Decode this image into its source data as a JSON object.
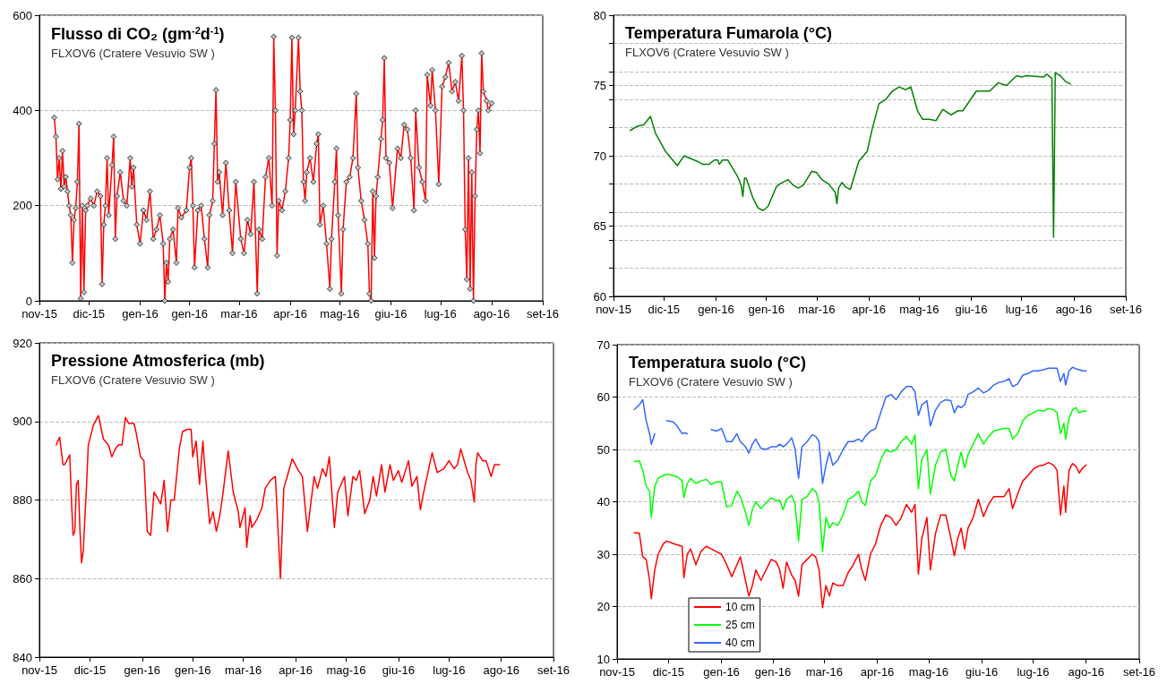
{
  "chart_data": [
    {
      "type": "line",
      "title": "Flusso di CO₂ (gm$^{-2}$d$^{-1}$)",
      "subtitle": "FLXOV6 (Cratere Vesuvio SW )",
      "marker": "diamond",
      "grid": "y",
      "xlim": [
        "2015-11-01",
        "2016-09-01"
      ],
      "xticks": [
        {
          "value": "2015-11-01",
          "label": "nov-15"
        },
        {
          "value": "2015-12-01",
          "label": "dic-15"
        },
        {
          "value": "2016-01-01",
          "label": "gen-16"
        },
        {
          "value": "2016-01-31",
          "label": "gen-16"
        },
        {
          "value": "2016-03-01",
          "label": "mar-16"
        },
        {
          "value": "2016-04-01",
          "label": "apr-16"
        },
        {
          "value": "2016-05-01",
          "label": "mag-16"
        },
        {
          "value": "2016-06-01",
          "label": "giu-16"
        },
        {
          "value": "2016-07-01",
          "label": "lug-16"
        },
        {
          "value": "2016-08-01",
          "label": "ago-16"
        },
        {
          "value": "2016-09-01",
          "label": "set-16"
        }
      ],
      "ylim": [
        0,
        600
      ],
      "yticks": [
        0,
        200,
        400,
        600
      ],
      "x": [
        "2015-11-10",
        "2015-11-11",
        "2015-11-12",
        "2015-11-13",
        "2015-11-14",
        "2015-11-15",
        "2015-11-16",
        "2015-11-17",
        "2015-11-18",
        "2015-11-19",
        "2015-11-20",
        "2015-11-21",
        "2015-11-22",
        "2015-11-23",
        "2015-11-24",
        "2015-11-25",
        "2015-11-26",
        "2015-11-27",
        "2015-11-28",
        "2015-11-29",
        "2015-11-30",
        "2015-12-02",
        "2015-12-04",
        "2015-12-06",
        "2015-12-08",
        "2015-12-09",
        "2015-12-10",
        "2015-12-11",
        "2015-12-12",
        "2015-12-13",
        "2015-12-15",
        "2015-12-16",
        "2015-12-17",
        "2015-12-18",
        "2015-12-20",
        "2015-12-22",
        "2015-12-24",
        "2015-12-26",
        "2015-12-27",
        "2015-12-28",
        "2015-12-30",
        "2016-01-01",
        "2016-01-03",
        "2016-01-05",
        "2016-01-07",
        "2016-01-09",
        "2016-01-11",
        "2016-01-13",
        "2016-01-15",
        "2016-01-16",
        "2016-01-17",
        "2016-01-18",
        "2016-01-19",
        "2016-01-21",
        "2016-01-23",
        "2016-01-24",
        "2016-01-26",
        "2016-01-29",
        "2016-01-31",
        "2016-02-01",
        "2016-02-02",
        "2016-02-03",
        "2016-02-05",
        "2016-02-07",
        "2016-02-09",
        "2016-02-11",
        "2016-02-12",
        "2016-02-14",
        "2016-02-15",
        "2016-02-16",
        "2016-02-17",
        "2016-02-18",
        "2016-02-20",
        "2016-02-22",
        "2016-02-24",
        "2016-02-26",
        "2016-02-28",
        "2016-03-02",
        "2016-03-04",
        "2016-03-06",
        "2016-03-08",
        "2016-03-10",
        "2016-03-12",
        "2016-03-13",
        "2016-03-15",
        "2016-03-17",
        "2016-03-19",
        "2016-03-21",
        "2016-03-22",
        "2016-03-23",
        "2016-03-24",
        "2016-03-25",
        "2016-03-27",
        "2016-03-29",
        "2016-03-31",
        "2016-04-01",
        "2016-04-02",
        "2016-04-03",
        "2016-04-04",
        "2016-04-06",
        "2016-04-07",
        "2016-04-08",
        "2016-04-09",
        "2016-04-10",
        "2016-04-11",
        "2016-04-13",
        "2016-04-15",
        "2016-04-17",
        "2016-04-18",
        "2016-04-19",
        "2016-04-21",
        "2016-04-23",
        "2016-04-25",
        "2016-04-26",
        "2016-04-28",
        "2016-04-29",
        "2016-04-30",
        "2016-05-02",
        "2016-05-03",
        "2016-05-05",
        "2016-05-07",
        "2016-05-09",
        "2016-05-11",
        "2016-05-12",
        "2016-05-14",
        "2016-05-16",
        "2016-05-18",
        "2016-05-19",
        "2016-05-20",
        "2016-05-21",
        "2016-05-22",
        "2016-05-23",
        "2016-05-24",
        "2016-05-26",
        "2016-05-27",
        "2016-05-28",
        "2016-05-29",
        "2016-05-31",
        "2016-06-02",
        "2016-06-05",
        "2016-06-07",
        "2016-06-09",
        "2016-06-11",
        "2016-06-13",
        "2016-06-15",
        "2016-06-16",
        "2016-06-18",
        "2016-06-20",
        "2016-06-22",
        "2016-06-23",
        "2016-06-25",
        "2016-06-26",
        "2016-06-28",
        "2016-06-30",
        "2016-07-02",
        "2016-07-04",
        "2016-07-06",
        "2016-07-08",
        "2016-07-10",
        "2016-07-12",
        "2016-07-14",
        "2016-07-15",
        "2016-07-16",
        "2016-07-17",
        "2016-07-18",
        "2016-07-19",
        "2016-07-20",
        "2016-07-21",
        "2016-07-22",
        "2016-07-23",
        "2016-07-24",
        "2016-07-25",
        "2016-07-26",
        "2016-07-27",
        "2016-07-29",
        "2016-07-30",
        "2016-08-01"
      ],
      "series": [
        {
          "color": "#ff0000",
          "values": [
            385,
            345,
            255,
            300,
            235,
            315,
            240,
            260,
            230,
            200,
            180,
            80,
            170,
            195,
            250,
            372,
            5,
            200,
            18,
            190,
            200,
            215,
            200,
            230,
            220,
            35,
            160,
            200,
            300,
            180,
            285,
            345,
            130,
            220,
            270,
            210,
            200,
            300,
            240,
            280,
            160,
            120,
            190,
            170,
            230,
            130,
            150,
            180,
            120,
            0,
            80,
            40,
            130,
            150,
            80,
            195,
            175,
            190,
            280,
            300,
            200,
            70,
            190,
            200,
            130,
            70,
            180,
            210,
            330,
            443,
            250,
            270,
            180,
            290,
            190,
            100,
            250,
            130,
            100,
            170,
            140,
            250,
            15,
            150,
            130,
            260,
            300,
            200,
            555,
            400,
            95,
            210,
            190,
            230,
            300,
            380,
            553,
            350,
            400,
            553,
            440,
            400,
            250,
            210,
            270,
            300,
            250,
            330,
            350,
            160,
            200,
            120,
            25,
            130,
            250,
            320,
            180,
            15,
            150,
            250,
            260,
            300,
            435,
            280,
            210,
            170,
            120,
            15,
            0,
            230,
            90,
            220,
            260,
            340,
            380,
            510,
            300,
            290,
            195,
            320,
            300,
            370,
            360,
            300,
            190,
            400,
            280,
            250,
            210,
            475,
            410,
            485,
            400,
            245,
            450,
            470,
            500,
            440,
            460,
            420,
            515,
            400,
            150,
            45,
            300,
            25,
            270,
            0,
            220,
            360,
            400,
            310,
            520,
            440,
            420,
            400,
            415
          ]
        }
      ]
    },
    {
      "type": "line",
      "title": "Temperatura Fumarola (°C)",
      "subtitle": "FLXOV6 (Cratere Vesuvio SW )",
      "grid": "y",
      "xlim": [
        "2015-11-01",
        "2016-09-01"
      ],
      "xticks": [
        {
          "value": "2015-11-01",
          "label": "nov-15"
        },
        {
          "value": "2015-12-01",
          "label": "dic-15"
        },
        {
          "value": "2016-01-01",
          "label": "gen-16"
        },
        {
          "value": "2016-01-31",
          "label": "gen-16"
        },
        {
          "value": "2016-03-01",
          "label": "mar-16"
        },
        {
          "value": "2016-04-01",
          "label": "apr-16"
        },
        {
          "value": "2016-05-01",
          "label": "mag-16"
        },
        {
          "value": "2016-06-01",
          "label": "giu-16"
        },
        {
          "value": "2016-07-01",
          "label": "lug-16"
        },
        {
          "value": "2016-08-01",
          "label": "ago-16"
        },
        {
          "value": "2016-09-01",
          "label": "set-16"
        }
      ],
      "ylim": [
        60,
        80
      ],
      "yticks": [
        60,
        {
          "value": 62,
          "label": null
        },
        {
          "value": 64,
          "label": null
        },
        65,
        {
          "value": 66,
          "label": null
        },
        {
          "value": 68,
          "label": null
        },
        70,
        {
          "value": 72,
          "label": null
        },
        {
          "value": 74,
          "label": null
        },
        75,
        {
          "value": 76,
          "label": null
        },
        {
          "value": 78,
          "label": null
        },
        80
      ],
      "x": [
        "2015-11-11",
        "2015-11-15",
        "2015-11-19",
        "2015-11-23",
        "2015-11-26",
        "2015-12-02",
        "2015-12-09",
        "2015-12-13",
        "2015-12-21",
        "2015-12-24",
        "2015-12-28",
        "2015-12-31",
        "2016-01-02",
        "2016-01-03",
        "2016-01-05",
        "2016-01-08",
        "2016-01-14",
        "2016-01-16",
        "2016-01-17",
        "2016-01-18",
        "2016-01-19",
        "2016-01-23",
        "2016-01-26",
        "2016-01-29",
        "2016-02-01",
        "2016-02-06",
        "2016-02-08",
        "2016-02-13",
        "2016-02-16",
        "2016-02-19",
        "2016-02-22",
        "2016-02-27",
        "2016-03-01",
        "2016-03-04",
        "2016-03-08",
        "2016-03-12",
        "2016-03-13",
        "2016-03-14",
        "2016-03-16",
        "2016-03-18",
        "2016-03-21",
        "2016-03-26",
        "2016-03-31",
        "2016-04-03",
        "2016-04-07",
        "2016-04-11",
        "2016-04-15",
        "2016-04-19",
        "2016-04-23",
        "2016-04-26",
        "2016-04-30",
        "2016-05-03",
        "2016-05-07",
        "2016-05-11",
        "2016-05-15",
        "2016-05-20",
        "2016-05-24",
        "2016-05-27",
        "2016-06-04",
        "2016-06-12",
        "2016-06-17",
        "2016-06-22",
        "2016-06-28",
        "2016-07-01",
        "2016-07-04",
        "2016-07-14",
        "2016-07-16",
        "2016-07-19",
        "2016-07-20",
        "2016-07-21",
        "2016-07-24",
        "2016-07-27",
        "2016-07-30"
      ],
      "series": [
        {
          "color": "#008000",
          "values": [
            71.8,
            72.1,
            72.2,
            72.8,
            71.6,
            70.3,
            69.3,
            70.0,
            69.6,
            69.4,
            69.4,
            69.7,
            69.7,
            69.4,
            69.7,
            69.7,
            68.5,
            67.9,
            67.1,
            68.4,
            68.4,
            67.0,
            66.3,
            66.1,
            66.4,
            67.8,
            68.0,
            68.3,
            67.9,
            67.7,
            67.9,
            68.9,
            68.8,
            68.3,
            68.0,
            67.4,
            66.6,
            67.7,
            68.1,
            67.8,
            67.6,
            69.6,
            70.3,
            71.9,
            73.7,
            74.0,
            74.6,
            74.9,
            74.7,
            74.9,
            73.2,
            72.6,
            72.6,
            72.5,
            73.3,
            72.9,
            73.2,
            73.2,
            74.6,
            74.6,
            75.2,
            75.0,
            75.7,
            75.6,
            75.7,
            75.6,
            75.8,
            75.5,
            64.2,
            75.9,
            75.7,
            75.3,
            75.1
          ]
        }
      ]
    },
    {
      "type": "line",
      "title": "Pressione Atmosferica (mb)",
      "subtitle": "FLXOV6 (Cratere Vesuvio SW )",
      "grid": "y",
      "xlim": [
        "2015-11-01",
        "2016-09-01"
      ],
      "xticks": [
        {
          "value": "2015-11-01",
          "label": "nov-15"
        },
        {
          "value": "2015-12-01",
          "label": "dic-15"
        },
        {
          "value": "2016-01-01",
          "label": "gen-16"
        },
        {
          "value": "2016-01-31",
          "label": "gen-16"
        },
        {
          "value": "2016-03-01",
          "label": "mar-16"
        },
        {
          "value": "2016-04-01",
          "label": "apr-16"
        },
        {
          "value": "2016-05-01",
          "label": "mag-16"
        },
        {
          "value": "2016-06-01",
          "label": "giu-16"
        },
        {
          "value": "2016-07-01",
          "label": "lug-16"
        },
        {
          "value": "2016-08-01",
          "label": "ago-16"
        },
        {
          "value": "2016-09-01",
          "label": "set-16"
        }
      ],
      "ylim": [
        840,
        920
      ],
      "yticks": [
        840,
        860,
        880,
        900,
        920
      ],
      "x": [
        "2015-11-11",
        "2015-11-13",
        "2015-11-15",
        "2015-11-16",
        "2015-11-19",
        "2015-11-20",
        "2015-11-21",
        "2015-11-22",
        "2015-11-23",
        "2015-11-24",
        "2015-11-25",
        "2015-11-26",
        "2015-11-27",
        "2015-11-29",
        "2015-11-30",
        "2015-12-03",
        "2015-12-06",
        "2015-12-09",
        "2015-12-12",
        "2015-12-14",
        "2015-12-16",
        "2015-12-18",
        "2015-12-20",
        "2015-12-22",
        "2015-12-24",
        "2015-12-27",
        "2015-12-28",
        "2015-12-31",
        "2016-01-02",
        "2016-01-04",
        "2016-01-06",
        "2016-01-08",
        "2016-01-12",
        "2016-01-14",
        "2016-01-16",
        "2016-01-18",
        "2016-01-20",
        "2016-01-23",
        "2016-01-25",
        "2016-01-28",
        "2016-01-30",
        "2016-01-31",
        "2016-02-02",
        "2016-02-04",
        "2016-02-06",
        "2016-02-07",
        "2016-02-10",
        "2016-02-12",
        "2016-02-14",
        "2016-02-16",
        "2016-02-18",
        "2016-02-21",
        "2016-02-24",
        "2016-02-27",
        "2016-02-28",
        "2016-03-02",
        "2016-03-03",
        "2016-03-05",
        "2016-03-06",
        "2016-03-09",
        "2016-03-12",
        "2016-03-14",
        "2016-03-17",
        "2016-03-20",
        "2016-03-23",
        "2016-03-25",
        "2016-03-27",
        "2016-03-30",
        "2016-04-02",
        "2016-04-05",
        "2016-04-08",
        "2016-04-12",
        "2016-04-14",
        "2016-04-17",
        "2016-04-19",
        "2016-04-21",
        "2016-04-24",
        "2016-04-26",
        "2016-04-30",
        "2016-05-02",
        "2016-05-05",
        "2016-05-07",
        "2016-05-09",
        "2016-05-12",
        "2016-05-15",
        "2016-05-17",
        "2016-05-19",
        "2016-05-22",
        "2016-05-24",
        "2016-05-27",
        "2016-05-29",
        "2016-06-01",
        "2016-06-03",
        "2016-06-07",
        "2016-06-09",
        "2016-06-12",
        "2016-06-14",
        "2016-06-16",
        "2016-06-19",
        "2016-06-21",
        "2016-06-24",
        "2016-06-28",
        "2016-07-01",
        "2016-07-04",
        "2016-07-06",
        "2016-07-08",
        "2016-07-12",
        "2016-07-14",
        "2016-07-16",
        "2016-07-17",
        "2016-07-18",
        "2016-07-21",
        "2016-07-23",
        "2016-07-26",
        "2016-07-28",
        "2016-07-31"
      ],
      "series": [
        {
          "color": "#ff0000",
          "values": [
            894,
            896,
            889,
            889,
            891.5,
            880,
            871,
            872,
            884,
            885,
            873,
            864,
            867,
            884,
            894,
            899,
            901.5,
            895.5,
            894,
            891,
            893,
            894,
            894,
            901,
            899.5,
            899.5,
            898,
            891,
            890,
            872,
            871,
            882,
            879,
            885,
            872,
            880,
            880,
            893,
            897.5,
            898,
            898,
            891,
            895,
            884,
            895,
            889,
            874,
            877,
            872,
            876,
            882,
            892.5,
            882,
            877,
            873,
            878,
            868,
            876,
            873,
            875,
            878,
            883,
            885,
            886,
            860,
            883,
            886,
            890.5,
            888,
            886,
            872,
            886,
            883,
            888,
            886,
            891,
            873,
            882,
            886,
            876,
            886,
            885,
            887.5,
            876.5,
            880,
            886,
            881,
            889,
            882,
            889,
            885,
            887.5,
            884.5,
            890,
            883.5,
            886,
            877.5,
            882,
            888,
            892,
            887,
            888,
            890,
            888,
            889,
            893,
            887,
            885,
            879.5,
            889,
            892,
            890,
            890,
            886,
            889,
            889
          ]
        }
      ]
    },
    {
      "type": "line",
      "title": "Temperatura suolo (°C)",
      "subtitle": "FLXOV6 (Cratere Vesuvio SW )",
      "grid": "y",
      "legend": "bottom left",
      "xlim": [
        "2015-11-01",
        "2016-09-01"
      ],
      "xticks": [
        {
          "value": "2015-11-01",
          "label": "nov-15"
        },
        {
          "value": "2015-12-01",
          "label": "dic-15"
        },
        {
          "value": "2016-01-01",
          "label": "gen-16"
        },
        {
          "value": "2016-01-31",
          "label": "gen-16"
        },
        {
          "value": "2016-03-01",
          "label": "mar-16"
        },
        {
          "value": "2016-04-01",
          "label": "apr-16"
        },
        {
          "value": "2016-05-01",
          "label": "mag-16"
        },
        {
          "value": "2016-06-01",
          "label": "giu-16"
        },
        {
          "value": "2016-07-01",
          "label": "lug-16"
        },
        {
          "value": "2016-08-01",
          "label": "ago-16"
        },
        {
          "value": "2016-09-01",
          "label": "set-16"
        }
      ],
      "ylim": [
        10,
        70
      ],
      "yticks": [
        10,
        20,
        30,
        40,
        50,
        60,
        70
      ],
      "x": [
        "2015-11-11",
        "2015-11-14",
        "2015-11-16",
        "2015-11-18",
        "2015-11-20",
        "2015-11-21",
        "2015-11-23",
        "2015-11-25",
        "2015-11-28",
        "2015-11-30",
        "2015-12-04",
        "2015-12-06",
        "2015-12-09",
        "2015-12-10",
        "2015-12-12",
        "2015-12-14",
        "2015-12-17",
        "2015-12-20",
        "2015-12-23",
        "2015-12-26",
        "2015-12-29",
        "2016-01-01",
        "2016-01-04",
        "2016-01-07",
        "2016-01-10",
        "2016-01-12",
        "2016-01-15",
        "2016-01-17",
        "2016-01-19",
        "2016-01-21",
        "2016-01-24",
        "2016-01-27",
        "2016-01-30",
        "2016-02-02",
        "2016-02-04",
        "2016-02-06",
        "2016-02-08",
        "2016-02-11",
        "2016-02-13",
        "2016-02-15",
        "2016-02-17",
        "2016-02-20",
        "2016-02-23",
        "2016-02-25",
        "2016-02-27",
        "2016-02-29",
        "2016-03-02",
        "2016-03-04",
        "2016-03-06",
        "2016-03-09",
        "2016-03-12",
        "2016-03-15",
        "2016-03-18",
        "2016-03-21",
        "2016-03-23",
        "2016-03-25",
        "2016-03-28",
        "2016-03-31",
        "2016-04-03",
        "2016-04-06",
        "2016-04-09",
        "2016-04-12",
        "2016-04-15",
        "2016-04-18",
        "2016-04-21",
        "2016-04-23",
        "2016-04-25",
        "2016-04-27",
        "2016-04-30",
        "2016-05-02",
        "2016-05-05",
        "2016-05-08",
        "2016-05-11",
        "2016-05-14",
        "2016-05-16",
        "2016-05-18",
        "2016-05-20",
        "2016-05-22",
        "2016-05-24",
        "2016-05-27",
        "2016-05-30",
        "2016-06-02",
        "2016-06-05",
        "2016-06-08",
        "2016-06-11",
        "2016-06-14",
        "2016-06-17",
        "2016-06-19",
        "2016-06-22",
        "2016-06-25",
        "2016-06-28",
        "2016-07-01",
        "2016-07-04",
        "2016-07-07",
        "2016-07-10",
        "2016-07-13",
        "2016-07-15",
        "2016-07-17",
        "2016-07-19",
        "2016-07-20",
        "2016-07-22",
        "2016-07-24",
        "2016-07-26",
        "2016-07-28",
        "2016-07-30",
        "2016-08-01"
      ],
      "series": [
        {
          "name": "10 cm",
          "color": "#ff0000",
          "values": [
            34.1,
            34,
            29.5,
            29,
            25,
            21.5,
            27,
            30,
            32,
            32.5,
            32,
            31.8,
            31.5,
            25.5,
            30,
            31,
            28,
            30.5,
            31.5,
            31,
            30.5,
            30,
            28,
            25.7,
            28,
            29.5,
            25,
            22,
            24,
            27,
            25,
            27,
            29,
            28.5,
            27,
            23.5,
            28.5,
            26,
            25,
            22,
            28,
            29,
            30,
            29.5,
            27,
            19.8,
            24,
            22,
            24.5,
            24,
            24,
            26.5,
            28,
            30,
            27,
            25,
            30,
            32,
            35.5,
            37.5,
            37,
            35.5,
            37,
            39.5,
            38,
            39.5,
            26.2,
            33,
            37,
            27,
            34,
            37.5,
            37.5,
            33,
            29.7,
            33,
            35,
            31,
            35,
            37,
            40.5,
            37.2,
            39.5,
            41,
            41,
            41,
            42.5,
            38.7,
            41.5,
            44,
            45,
            46.2,
            46.8,
            47,
            47.5,
            47,
            46,
            37.5,
            43,
            38,
            46,
            47.3,
            46.8,
            45.5,
            46.5,
            47
          ]
        },
        {
          "name": "25 cm",
          "color": "#00ff00",
          "values": [
            47.7,
            47.8,
            46,
            43,
            42,
            37,
            43,
            44.5,
            45,
            45.3,
            45,
            44.8,
            44,
            40.8,
            43.5,
            44.5,
            43.5,
            44,
            44.3,
            43.3,
            43.8,
            43.8,
            39,
            39.3,
            42,
            41,
            38,
            35.5,
            38.5,
            40,
            38.7,
            39.8,
            40.8,
            40.2,
            40.3,
            38.5,
            40.5,
            41.2,
            39.5,
            32.5,
            40.5,
            41,
            42.5,
            42,
            40,
            30.5,
            37,
            35,
            36,
            35.5,
            37.5,
            40.5,
            41,
            42,
            40,
            39.3,
            44,
            45,
            48,
            50,
            49.5,
            50,
            51.5,
            52.5,
            51,
            52.8,
            42.5,
            48,
            50,
            41.5,
            47,
            49.5,
            50,
            45,
            44,
            47,
            49.5,
            46.5,
            49,
            51,
            53,
            51,
            52.5,
            53.5,
            53.8,
            54,
            54,
            52,
            53,
            55.5,
            56.5,
            57,
            57.5,
            57.3,
            57.8,
            57.6,
            57,
            53,
            55,
            52,
            56,
            57.5,
            58,
            57,
            57.3,
            57.3
          ]
        },
        {
          "name": "40 cm",
          "color": "#3366ff",
          "values": [
            57.6,
            58.5,
            59.5,
            55.5,
            53,
            51,
            53,
            null,
            null,
            55.5,
            55.2,
            54.5,
            53,
            53.2,
            53,
            null,
            null,
            null,
            null,
            53.8,
            53.5,
            54,
            51.5,
            51.5,
            53,
            51.5,
            50.5,
            49.3,
            51,
            52,
            50.2,
            50,
            50.5,
            50.5,
            51,
            50.5,
            51,
            52.2,
            50,
            44.5,
            50.5,
            51.5,
            52.8,
            52.5,
            51.5,
            43.5,
            47,
            49.5,
            47,
            48,
            50,
            51.5,
            51.5,
            52,
            51.5,
            52.5,
            53.5,
            54,
            57,
            60,
            60.5,
            59.5,
            61,
            62,
            62,
            61,
            56.5,
            58.5,
            59.3,
            54.5,
            57.5,
            59,
            59.5,
            59.3,
            57,
            58.3,
            58,
            58.5,
            60.5,
            61,
            61.7,
            60.8,
            61.3,
            62.3,
            62.8,
            63,
            63.5,
            62,
            62.5,
            64.2,
            64.5,
            65,
            65,
            65.2,
            65.5,
            65.5,
            65.5,
            63,
            64.5,
            62.3,
            65,
            65.7,
            65.4,
            65.2,
            65,
            65
          ]
        }
      ]
    }
  ]
}
